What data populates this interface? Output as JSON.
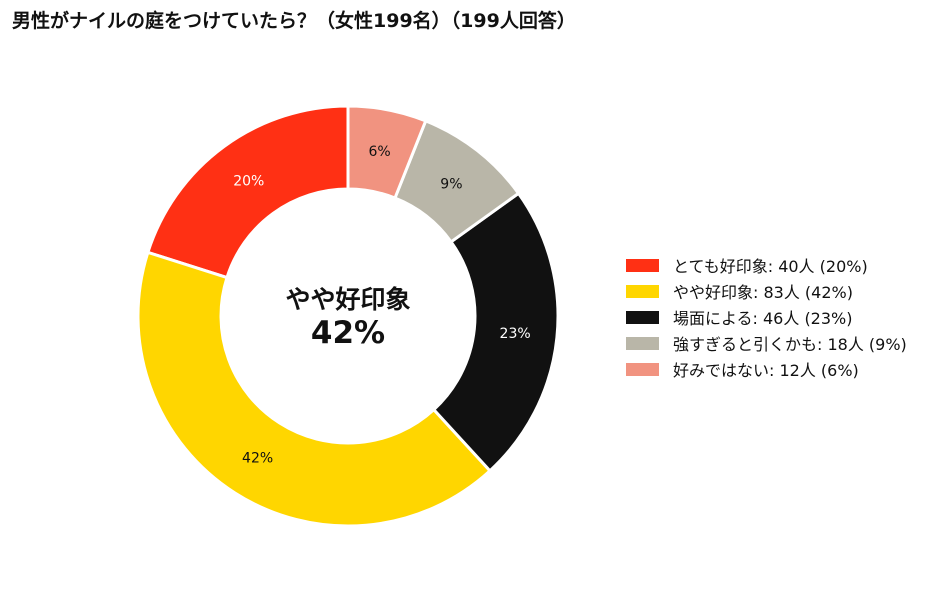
{
  "chart_data": {
    "type": "pie",
    "variant": "donut",
    "title": "男性がナイルの庭をつけていたら？（女性199名）（199人回答）",
    "slices": [
      {
        "category": "とても好印象",
        "count": 40,
        "percent": 20,
        "label": "20%",
        "color": "#FF3014",
        "text_color": "#FFFFFF",
        "legend": "とても好印象:  40人 (20%)"
      },
      {
        "category": "やや好印象",
        "count": 83,
        "percent": 42,
        "label": "42%",
        "color": "#FFD600",
        "text_color": "#111111",
        "legend": "やや好印象:  83人 (42%)"
      },
      {
        "category": "場面による",
        "count": 46,
        "percent": 23,
        "label": "23%",
        "color": "#111111",
        "text_color": "#FFFFFF",
        "legend": "場面による:  46人 (23%)"
      },
      {
        "category": "強すぎると引くかも",
        "count": 18,
        "percent": 9,
        "label": "9%",
        "color": "#B9B6A8",
        "text_color": "#111111",
        "legend": "強すぎると引くかも:  18人 (9%)"
      },
      {
        "category": "好みではない",
        "count": 12,
        "percent": 6,
        "label": "6%",
        "color": "#F19380",
        "text_color": "#111111",
        "legend": "好みではない:  12人 (6%)"
      }
    ],
    "center": {
      "category": "やや好印象",
      "value": "42%"
    },
    "start": "top",
    "direction": "counterclockwise",
    "legend_position": "right"
  }
}
